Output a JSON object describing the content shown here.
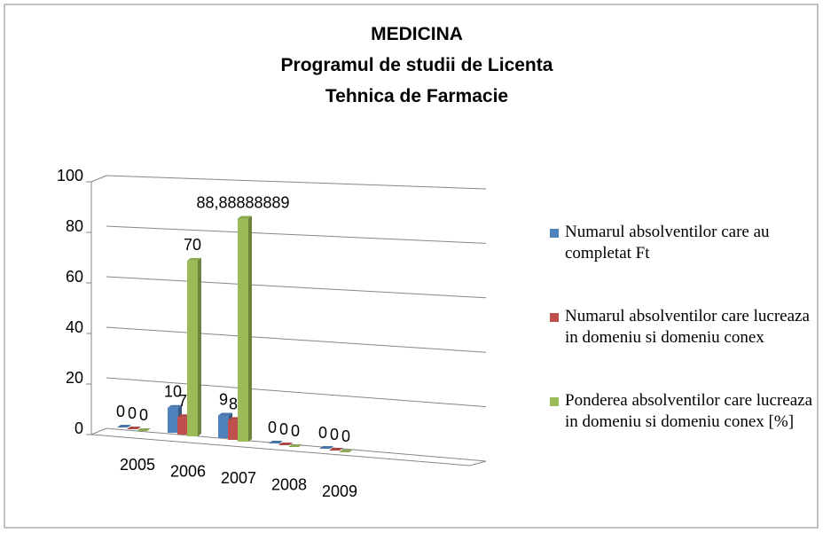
{
  "chart_data": {
    "type": "bar3d",
    "title": [
      "MEDICINA",
      "Programul de studii de Licenta",
      "Tehnica de Farmacie"
    ],
    "categories": [
      "2005",
      "2006",
      "2007",
      "2008",
      "2009"
    ],
    "series": [
      {
        "name": "Numarul absolventilor care au completat Ft",
        "color": "#4f81bd",
        "values": [
          0,
          10,
          9,
          0,
          0
        ]
      },
      {
        "name": "Numarul absolventilor care lucreaza in domeniu si domeniu conex",
        "color": "#c0504d",
        "values": [
          0,
          7,
          8,
          0,
          0
        ]
      },
      {
        "name": "Ponderea absolventilor care lucreaza in domeniu si domeniu conex [%]",
        "color": "#9bbb59",
        "values": [
          0,
          70,
          88.88888889,
          0,
          0
        ],
        "value_labels": [
          "0",
          "70",
          "88,88888889",
          "0",
          "0"
        ]
      }
    ],
    "ylim": [
      0,
      100
    ],
    "yticks": [
      0,
      20,
      40,
      60,
      80,
      100
    ],
    "grid": true,
    "legend": "right"
  }
}
